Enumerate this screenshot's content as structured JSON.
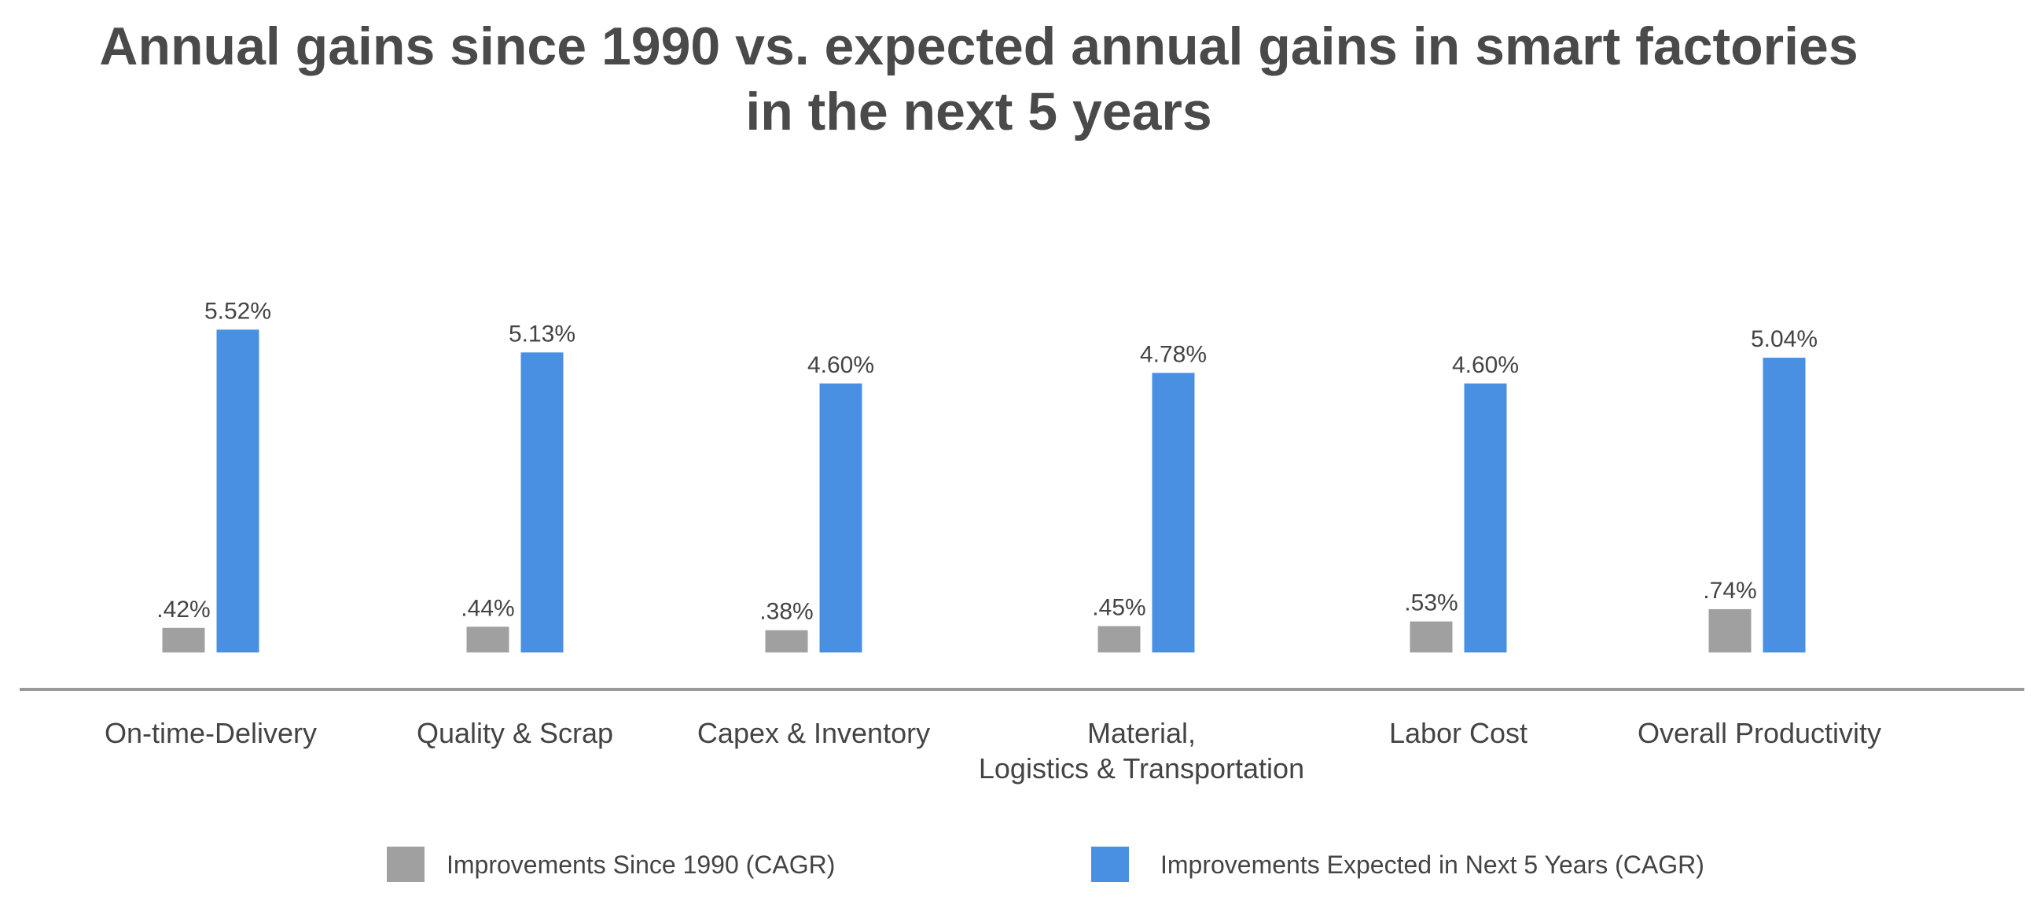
{
  "chart_data": {
    "type": "bar",
    "title_lines": [
      "Annual gains since 1990 vs. expected annual gains in smart factories",
      "in the next 5 years"
    ],
    "categories": [
      [
        "On-time-Delivery"
      ],
      [
        "Quality & Scrap"
      ],
      [
        "Capex & Inventory"
      ],
      [
        "Material,",
        "Logistics & Transportation"
      ],
      [
        "Labor Cost"
      ],
      [
        "Overall Productivity"
      ]
    ],
    "series": [
      {
        "name": "Improvements Since 1990 (CAGR)",
        "color": "#a0a0a0",
        "values": [
          0.42,
          0.44,
          0.38,
          0.45,
          0.53,
          0.74
        ],
        "labels": [
          ".42%",
          ".44%",
          ".38%",
          ".45%",
          ".53%",
          ".74%"
        ]
      },
      {
        "name": "Improvements Expected in Next 5 Years (CAGR)",
        "color": "#4a90e2",
        "values": [
          5.52,
          5.13,
          4.6,
          4.78,
          4.6,
          5.04
        ],
        "labels": [
          "5.52%",
          "5.13%",
          "4.60%",
          "4.78%",
          "4.60%",
          "5.04%"
        ]
      }
    ],
    "axis_color": "#999999",
    "legend_position": "bottom",
    "grid": false
  }
}
